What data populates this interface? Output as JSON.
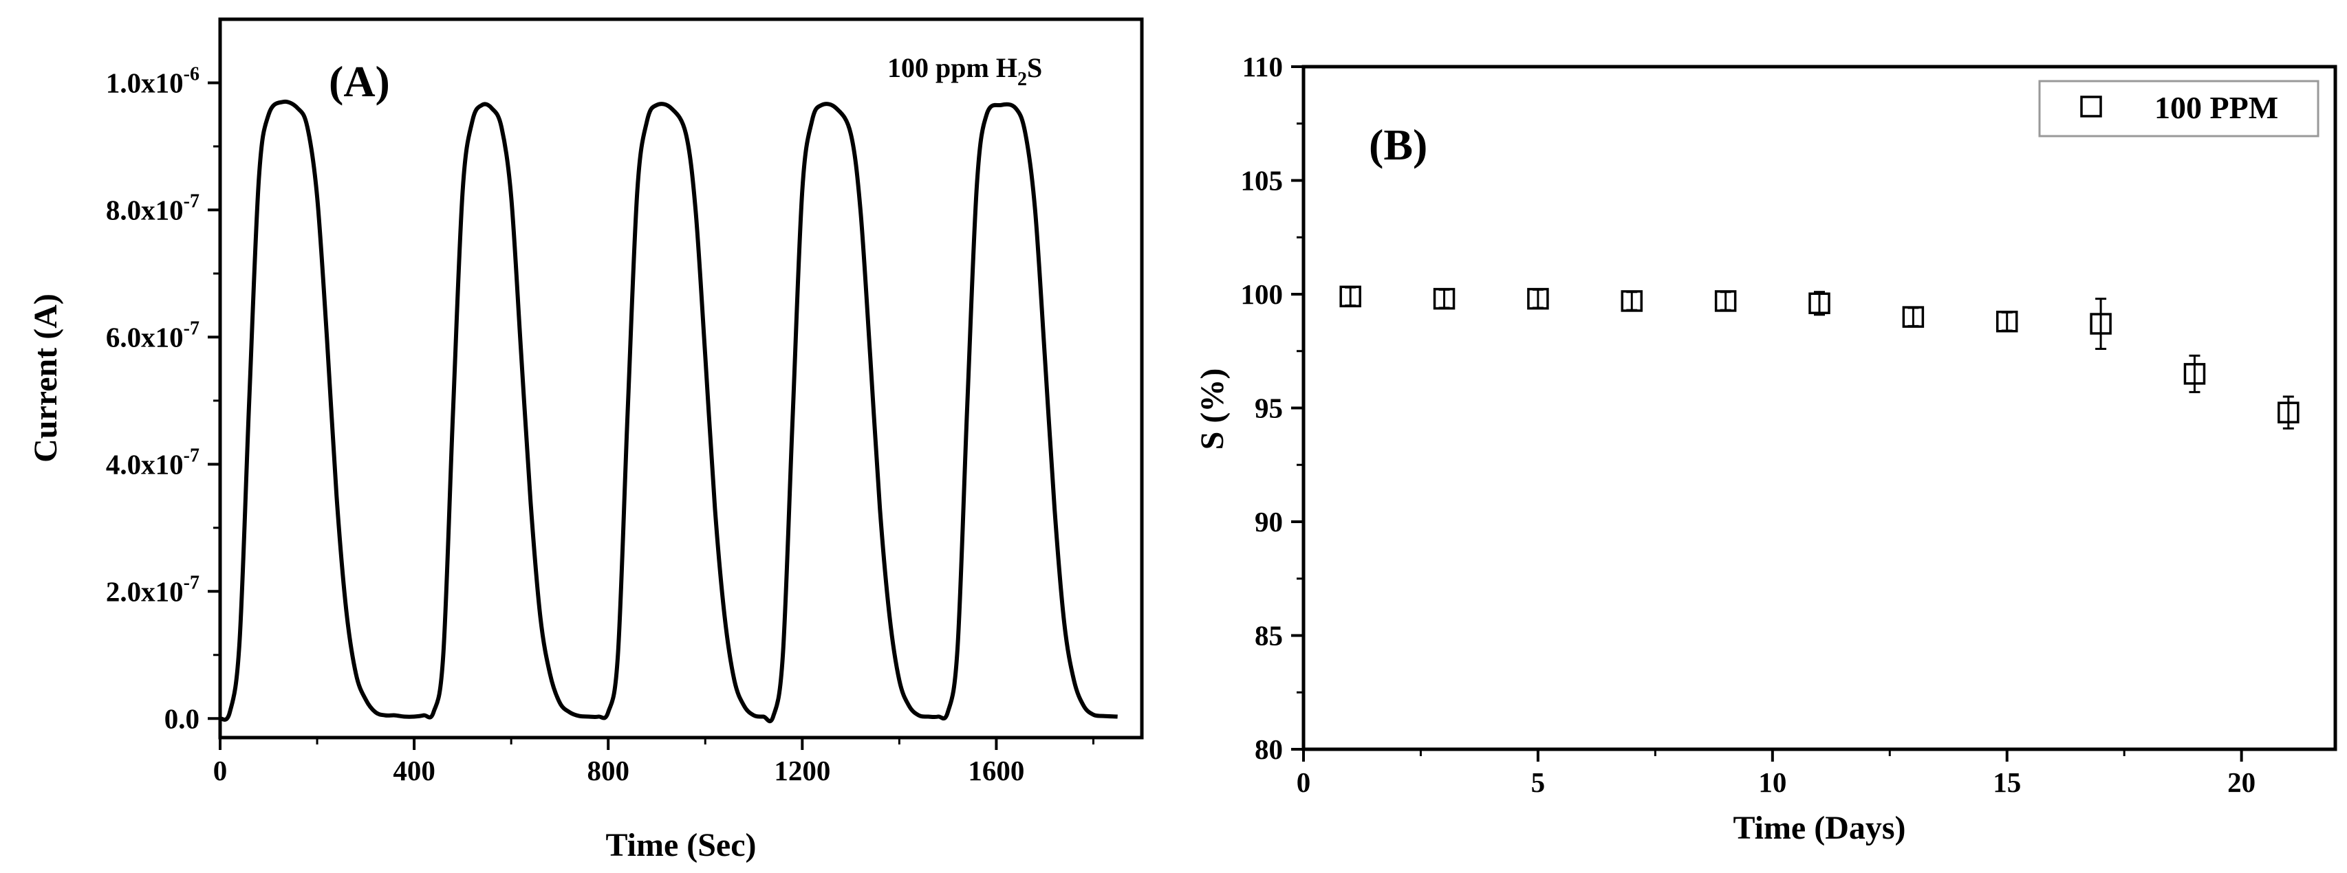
{
  "chart_data": [
    {
      "type": "line",
      "panel_label": "(A)",
      "annotation": {
        "text": "100 ppm H",
        "subscript": "2",
        "suffix": "S"
      },
      "xlabel": "Time (Sec)",
      "ylabel": "Current (A)",
      "xlim": [
        0,
        1900
      ],
      "ylim": [
        -3e-08,
        1.1e-06
      ],
      "xticks": [
        0,
        400,
        800,
        1200,
        1600
      ],
      "xtick_labels": [
        "0",
        "400",
        "800",
        "1200",
        "1600"
      ],
      "yticks": [
        0,
        2e-07,
        4e-07,
        6e-07,
        8e-07,
        1e-06
      ],
      "ytick_labels": [
        "0.0",
        "2.0x10",
        "4.0x10",
        "6.0x10",
        "8.0x10",
        "1.0x10"
      ],
      "ytick_exponents": [
        "",
        "-7",
        "-7",
        "-7",
        "-7",
        "-6"
      ],
      "grid": false,
      "series": [
        {
          "x": [
            0,
            20,
            40,
            60,
            80,
            100,
            130,
            160,
            180,
            200,
            220,
            240,
            260,
            280,
            300,
            320,
            340,
            360,
            380,
            400,
            420,
            440,
            460,
            480,
            500,
            520,
            540,
            560,
            580,
            600,
            620,
            640,
            660,
            680,
            700,
            720,
            740,
            760,
            780,
            800,
            820,
            840,
            860,
            880,
            900,
            930,
            960,
            980,
            1000,
            1020,
            1040,
            1060,
            1080,
            1100,
            1120,
            1140,
            1160,
            1180,
            1200,
            1220,
            1240,
            1270,
            1300,
            1320,
            1340,
            1360,
            1380,
            1400,
            1420,
            1440,
            1460,
            1480,
            1500,
            1520,
            1540,
            1560,
            1580,
            1610,
            1640,
            1660,
            1680,
            1700,
            1720,
            1740,
            1760,
            1780,
            1800,
            1820,
            1850
          ],
          "y": [
            0,
            1e-08,
            1.2e-07,
            5e-07,
            8.5e-07,
            9.5e-07,
            9.7e-07,
            9.6e-07,
            9.3e-07,
            8.2e-07,
            6e-07,
            3.5e-07,
            1.7e-07,
            7e-08,
            3e-08,
            1e-08,
            5e-09,
            5e-09,
            3e-09,
            3e-09,
            5e-09,
            1e-08,
            1e-07,
            4.8e-07,
            8.3e-07,
            9.4e-07,
            9.65e-07,
            9.6e-07,
            9.3e-07,
            8.2e-07,
            5.8e-07,
            3.4e-07,
            1.6e-07,
            7e-08,
            2.5e-08,
            1e-08,
            4e-09,
            3e-09,
            3e-09,
            1e-08,
            1e-07,
            4.8e-07,
            8.3e-07,
            9.4e-07,
            9.65e-07,
            9.6e-07,
            9.2e-07,
            8e-07,
            5.7e-07,
            3.3e-07,
            1.6e-07,
            6e-08,
            2e-08,
            5e-09,
            3e-09,
            3e-09,
            1e-07,
            4.7e-07,
            8.3e-07,
            9.4e-07,
            9.65e-07,
            9.6e-07,
            9.2e-07,
            8e-07,
            5.7e-07,
            3.3e-07,
            1.6e-07,
            6e-08,
            2e-08,
            5e-09,
            3e-09,
            3e-09,
            1e-08,
            1.1e-07,
            4.9e-07,
            8.4e-07,
            9.5e-07,
            9.65e-07,
            9.6e-07,
            9.2e-07,
            8e-07,
            5.7e-07,
            3.3e-07,
            1.5e-07,
            6e-08,
            2e-08,
            6e-09,
            4e-09,
            3e-09
          ]
        }
      ]
    },
    {
      "type": "scatter",
      "panel_label": "(B)",
      "xlabel": "Time (Days)",
      "ylabel": "S (%)",
      "xlim": [
        0,
        22
      ],
      "ylim": [
        80,
        110
      ],
      "xticks": [
        0,
        5,
        10,
        15,
        20
      ],
      "xtick_labels": [
        "0",
        "5",
        "10",
        "15",
        "20"
      ],
      "yticks": [
        80,
        85,
        90,
        95,
        100,
        105,
        110
      ],
      "ytick_labels": [
        "80",
        "85",
        "90",
        "95",
        "100",
        "105",
        "110"
      ],
      "grid": false,
      "legend_position": "top-right",
      "series": [
        {
          "name": "100 PPM",
          "marker": "open-square",
          "x": [
            1,
            3,
            5,
            7,
            9,
            11,
            13,
            15,
            17,
            19,
            21
          ],
          "y": [
            99.9,
            99.8,
            99.8,
            99.7,
            99.7,
            99.6,
            99.0,
            98.8,
            98.7,
            96.5,
            94.8
          ],
          "error": [
            0.4,
            0.4,
            0.4,
            0.4,
            0.4,
            0.5,
            0.4,
            0.4,
            1.1,
            0.8,
            0.7
          ]
        }
      ]
    }
  ]
}
